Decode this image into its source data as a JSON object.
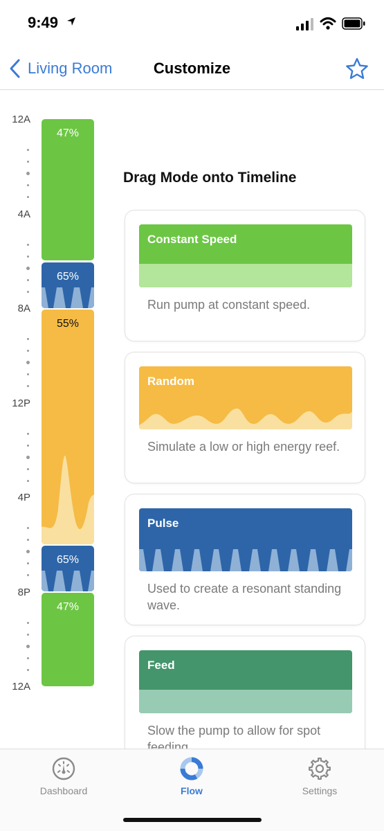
{
  "status_bar": {
    "time": "9:49"
  },
  "nav": {
    "back_label": "Living Room",
    "title": "Customize"
  },
  "timeline": {
    "labels": [
      "12A",
      "4A",
      "8A",
      "12P",
      "4P",
      "8P",
      "12A"
    ],
    "segments": [
      {
        "mode": "Constant Speed",
        "value": "47%",
        "color": "#6cc644"
      },
      {
        "mode": "Pulse",
        "value": "65%",
        "color": "#2d65a8"
      },
      {
        "mode": "Random",
        "value": "55%",
        "color": "#f5bb45"
      },
      {
        "mode": "Pulse",
        "value": "65%",
        "color": "#2d65a8"
      },
      {
        "mode": "Constant Speed",
        "value": "47%",
        "color": "#6cc644"
      }
    ]
  },
  "panel": {
    "title": "Drag Mode onto Timeline",
    "modes": [
      {
        "name": "Constant Speed",
        "description": "Run pump at constant speed.",
        "color": "#6cc644",
        "light_color": "#b3e59a"
      },
      {
        "name": "Random",
        "description": "Simulate a low or high energy reef.",
        "color": "#f5bb45",
        "light_color": "#f9e0a0"
      },
      {
        "name": "Pulse",
        "description": "Used to create a resonant standing wave.",
        "color": "#2d65a8",
        "light_color": "#8fb1d6"
      },
      {
        "name": "Feed",
        "description": "Slow the pump to allow for spot feeding.",
        "color": "#44956b",
        "light_color": "#98cbb3"
      }
    ]
  },
  "tabs": [
    {
      "label": "Dashboard",
      "icon": "dashboard-gauge-icon"
    },
    {
      "label": "Flow",
      "icon": "flow-ring-icon"
    },
    {
      "label": "Settings",
      "icon": "gear-icon"
    }
  ],
  "colors": {
    "accent": "#3a7bd5"
  }
}
